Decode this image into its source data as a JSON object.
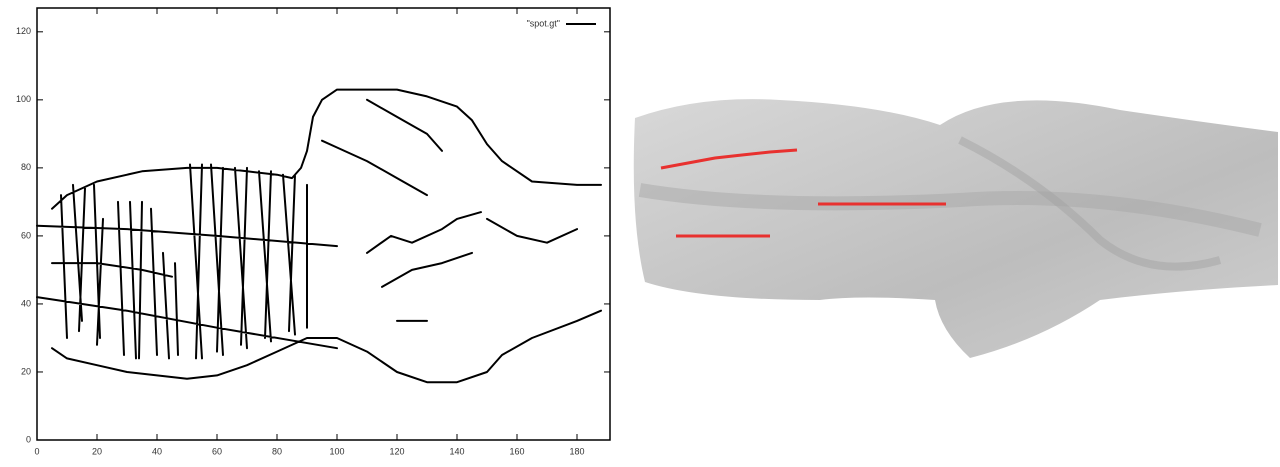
{
  "chart_data": {
    "type": "line",
    "x": [
      5,
      10,
      20,
      35,
      50,
      60,
      70,
      80,
      85,
      88,
      90,
      92,
      95,
      100,
      108,
      120,
      130,
      140,
      145,
      150,
      155,
      165,
      180,
      188,
      null,
      5,
      10,
      20,
      30,
      40,
      50,
      60,
      70,
      80,
      90,
      100,
      110,
      120,
      130,
      140,
      150,
      155,
      165,
      180,
      188,
      null,
      0,
      30,
      60,
      100,
      null,
      0,
      30,
      60,
      100,
      null,
      8,
      10,
      null,
      12,
      15,
      null,
      16,
      14,
      null,
      19,
      21,
      null,
      22,
      20,
      null,
      27,
      29,
      null,
      31,
      33,
      null,
      35,
      34,
      null,
      38,
      40,
      null,
      42,
      44,
      null,
      46,
      47,
      null,
      51,
      55,
      null,
      55,
      53,
      null,
      58,
      62,
      null,
      62,
      60,
      null,
      66,
      70,
      null,
      70,
      68,
      null,
      74,
      78,
      null,
      78,
      76,
      null,
      82,
      86,
      null,
      86,
      84,
      null,
      90,
      90,
      null,
      5,
      20,
      35,
      45,
      null,
      95,
      100,
      110,
      120,
      130,
      null,
      110,
      120,
      130,
      135,
      null,
      110,
      118,
      125,
      135,
      140,
      148,
      null,
      115,
      125,
      135,
      145,
      null,
      120,
      130,
      null,
      150,
      160,
      170,
      180
    ],
    "series": [
      {
        "name": "\"spot.gt\"",
        "color": "#000000",
        "values": [
          68,
          72,
          76,
          79,
          80,
          80,
          79,
          78,
          77,
          80,
          85,
          95,
          100,
          103,
          103,
          103,
          101,
          98,
          94,
          87,
          82,
          76,
          75,
          75,
          null,
          27,
          24,
          22,
          20,
          19,
          18,
          19,
          22,
          26,
          30,
          30,
          26,
          20,
          17,
          17,
          20,
          25,
          30,
          35,
          38,
          null,
          63,
          62,
          60,
          57,
          null,
          42,
          38,
          33,
          27,
          null,
          72,
          30,
          null,
          75,
          35,
          null,
          74,
          32,
          null,
          75,
          30,
          null,
          65,
          28,
          null,
          70,
          25,
          null,
          70,
          24,
          null,
          70,
          24,
          null,
          68,
          25,
          null,
          55,
          24,
          null,
          52,
          25,
          null,
          81,
          24,
          null,
          81,
          24,
          null,
          81,
          25,
          null,
          80,
          26,
          null,
          80,
          27,
          null,
          80,
          28,
          null,
          79,
          29,
          null,
          79,
          30,
          null,
          78,
          31,
          null,
          78,
          32,
          null,
          75,
          33,
          null,
          52,
          52,
          50,
          48,
          null,
          88,
          86,
          82,
          77,
          72,
          null,
          100,
          95,
          90,
          85,
          null,
          55,
          60,
          58,
          62,
          65,
          67,
          null,
          45,
          50,
          52,
          55,
          null,
          35,
          35,
          null,
          65,
          60,
          58,
          62
        ]
      }
    ],
    "xlim": [
      0,
      191
    ],
    "ylim": [
      0,
      127
    ],
    "xticks": [
      0,
      20,
      40,
      60,
      80,
      100,
      120,
      140,
      160,
      180
    ],
    "yticks": [
      0,
      20,
      40,
      60,
      80,
      100,
      120
    ],
    "legend": "top-right"
  }
}
